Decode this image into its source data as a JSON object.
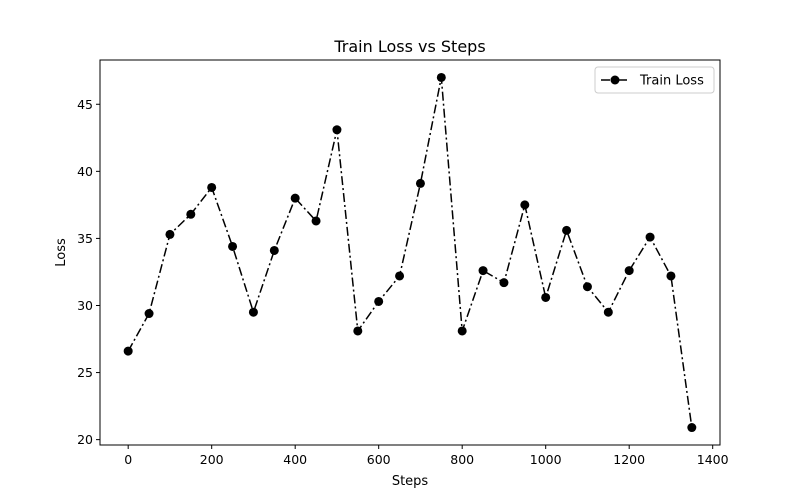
{
  "chart_data": {
    "type": "line",
    "title": "Train Loss vs Steps",
    "xlabel": "Steps",
    "ylabel": "Loss",
    "xlim": [
      -67.5,
      1417.5
    ],
    "ylim": [
      19.6,
      48.3
    ],
    "xticks": [
      0,
      200,
      400,
      600,
      800,
      1000,
      1200,
      1400
    ],
    "yticks": [
      20,
      25,
      30,
      35,
      40,
      45
    ],
    "grid": false,
    "legend_position": "top-right",
    "series": [
      {
        "name": "Train Loss",
        "color": "#000000",
        "linestyle": "dash-dot",
        "marker": "circle",
        "x": [
          0,
          50,
          100,
          150,
          200,
          250,
          300,
          350,
          400,
          450,
          500,
          550,
          600,
          650,
          700,
          750,
          800,
          850,
          900,
          950,
          1000,
          1050,
          1100,
          1150,
          1200,
          1250,
          1300,
          1350
        ],
        "y": [
          26.6,
          29.4,
          35.3,
          36.8,
          38.8,
          34.4,
          29.5,
          34.1,
          38.0,
          36.3,
          43.1,
          28.1,
          30.3,
          32.2,
          39.1,
          47.0,
          28.1,
          32.6,
          31.7,
          37.5,
          30.6,
          35.6,
          31.4,
          29.5,
          32.6,
          35.1,
          32.2,
          20.9
        ]
      }
    ]
  }
}
